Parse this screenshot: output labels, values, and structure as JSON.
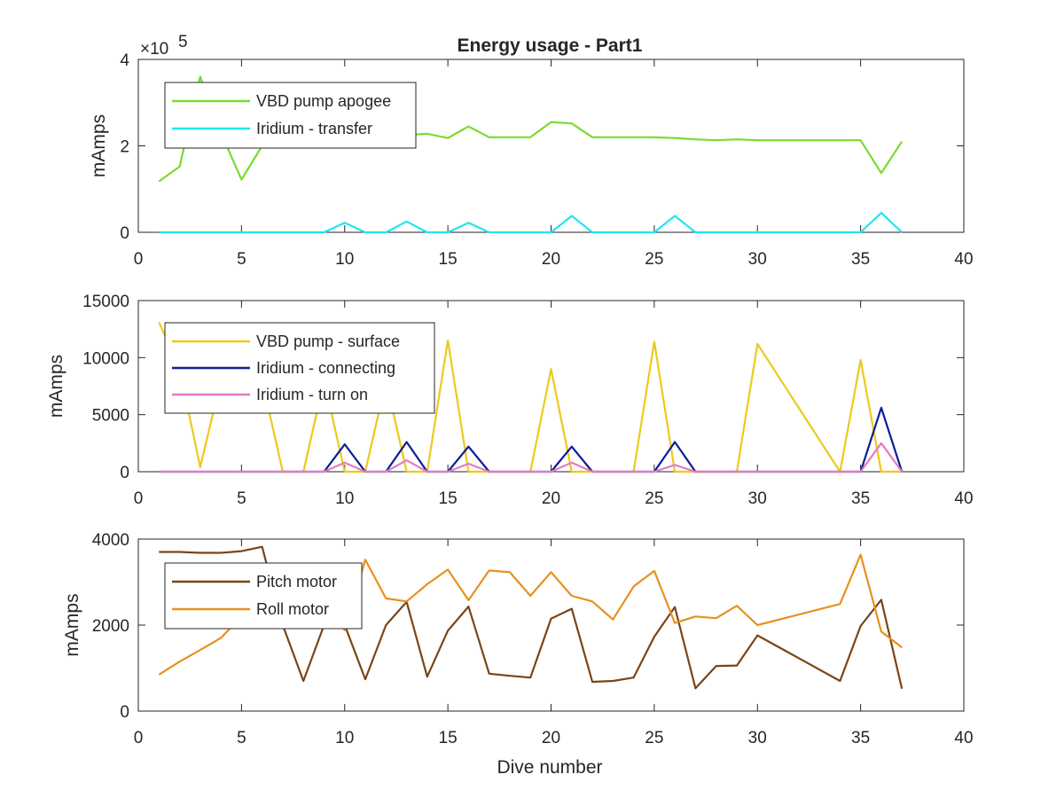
{
  "figure": {
    "title": "Energy usage - Part1",
    "xlabel": "Dive number"
  },
  "chart_data": [
    {
      "type": "line",
      "title": "Energy usage - Part1",
      "xlabel": "",
      "ylabel": "mAmps",
      "xlim": [
        0,
        40
      ],
      "ylim": [
        0,
        400000
      ],
      "xticks": [
        "0",
        "5",
        "10",
        "15",
        "20",
        "25",
        "30",
        "35",
        "40"
      ],
      "yticks": [
        "0",
        "2",
        "4"
      ],
      "ytick_values": [
        0,
        200000,
        400000
      ],
      "exponent_label": "×10",
      "exponent_power": "5",
      "grid": false,
      "legend": "top-left",
      "series": [
        {
          "name": "VBD pump apogee",
          "color": "#77DD2E",
          "x": [
            1,
            2,
            3,
            4,
            5,
            6,
            7,
            8,
            9,
            10,
            11,
            12,
            13,
            14,
            15,
            16,
            17,
            18,
            19,
            20,
            21,
            22,
            25,
            26,
            27,
            28,
            29,
            30,
            35,
            36,
            37
          ],
          "y": [
            118000,
            152000,
            360000,
            230000,
            122000,
            200000,
            215000,
            220000,
            225000,
            220000,
            215000,
            220000,
            225000,
            228000,
            218000,
            245000,
            220000,
            220000,
            220000,
            255000,
            252000,
            220000,
            220000,
            218000,
            215000,
            213000,
            215000,
            213000,
            213000,
            137000,
            210000
          ]
        },
        {
          "name": "Iridium - transfer",
          "color": "#1FE6F0",
          "x": [
            1,
            9,
            10,
            11,
            12,
            13,
            14,
            15,
            16,
            17,
            20,
            21,
            22,
            25,
            26,
            27,
            35,
            36,
            37
          ],
          "y": [
            0,
            0,
            22000,
            0,
            0,
            25000,
            0,
            0,
            22000,
            0,
            0,
            38000,
            0,
            0,
            38000,
            0,
            0,
            45000,
            0
          ]
        }
      ]
    },
    {
      "type": "line",
      "ylabel": "mAmps",
      "xlim": [
        0,
        40
      ],
      "ylim": [
        0,
        15000
      ],
      "xticks": [
        "0",
        "5",
        "10",
        "15",
        "20",
        "25",
        "30",
        "35",
        "40"
      ],
      "yticks": [
        "0",
        "5000",
        "10000",
        "15000"
      ],
      "ytick_values": [
        0,
        5000,
        10000,
        15000
      ],
      "grid": false,
      "legend": "top-left",
      "series": [
        {
          "name": "VBD pump - surface",
          "color": "#EDC91C",
          "x": [
            1,
            2,
            3,
            4,
            5,
            6,
            7,
            8,
            9,
            10,
            11,
            12,
            13,
            14,
            15,
            16,
            17,
            18,
            19,
            20,
            21,
            22,
            23,
            24,
            25,
            26,
            27,
            28,
            29,
            30,
            34,
            35,
            36,
            37
          ],
          "y": [
            13100,
            9000,
            400,
            8000,
            8000,
            8000,
            0,
            0,
            8000,
            0,
            0,
            8000,
            0,
            0,
            11500,
            0,
            0,
            0,
            0,
            9000,
            0,
            0,
            0,
            0,
            11400,
            0,
            0,
            0,
            0,
            11200,
            0,
            9800,
            0,
            0
          ]
        },
        {
          "name": "Iridium - connecting",
          "color": "#0A1E96",
          "x": [
            1,
            9,
            10,
            11,
            12,
            13,
            14,
            15,
            16,
            17,
            20,
            21,
            22,
            25,
            26,
            27,
            35,
            36,
            37
          ],
          "y": [
            0,
            0,
            2400,
            0,
            0,
            2600,
            0,
            0,
            2200,
            0,
            0,
            2200,
            0,
            0,
            2600,
            0,
            0,
            5600,
            0
          ]
        },
        {
          "name": "Iridium - turn on",
          "color": "#E47BC2",
          "x": [
            1,
            9,
            10,
            11,
            12,
            13,
            14,
            15,
            16,
            17,
            20,
            21,
            22,
            25,
            26,
            27,
            35,
            36,
            37
          ],
          "y": [
            0,
            0,
            800,
            0,
            0,
            1000,
            0,
            0,
            700,
            0,
            0,
            800,
            0,
            0,
            600,
            0,
            0,
            2500,
            0
          ]
        }
      ]
    },
    {
      "type": "line",
      "ylabel": "mAmps",
      "xlabel": "Dive number",
      "xlim": [
        0,
        40
      ],
      "ylim": [
        0,
        4000
      ],
      "xticks": [
        "0",
        "5",
        "10",
        "15",
        "20",
        "25",
        "30",
        "35",
        "40"
      ],
      "yticks": [
        "0",
        "2000",
        "4000"
      ],
      "ytick_values": [
        0,
        2000,
        4000
      ],
      "grid": false,
      "legend": "top-left",
      "series": [
        {
          "name": "Pitch motor",
          "color": "#7A4516",
          "x": [
            1,
            2,
            3,
            4,
            5,
            6,
            7,
            8,
            9,
            10,
            11,
            12,
            13,
            14,
            15,
            16,
            17,
            18,
            19,
            20,
            21,
            22,
            23,
            24,
            25,
            26,
            27,
            28,
            29,
            30,
            34,
            35,
            36,
            37
          ],
          "y": [
            3700,
            3700,
            3680,
            3680,
            3720,
            3820,
            2000,
            700,
            2000,
            2000,
            740,
            2000,
            2540,
            800,
            1870,
            2430,
            870,
            820,
            780,
            2150,
            2380,
            680,
            700,
            780,
            1730,
            2420,
            530,
            1050,
            1060,
            1760,
            700,
            1980,
            2590,
            520
          ]
        },
        {
          "name": "Roll motor",
          "color": "#E8901E",
          "x": [
            1,
            2,
            3,
            4,
            5,
            6,
            7,
            8,
            9,
            10,
            11,
            12,
            13,
            14,
            15,
            16,
            17,
            18,
            19,
            20,
            21,
            22,
            23,
            24,
            25,
            26,
            27,
            28,
            29,
            30,
            34,
            35,
            36,
            37
          ],
          "y": [
            850,
            1150,
            1420,
            1700,
            2200,
            2500,
            2800,
            3000,
            2500,
            1880,
            3520,
            2620,
            2550,
            2950,
            3290,
            2580,
            3270,
            3230,
            2680,
            3230,
            2680,
            2550,
            2130,
            2900,
            3260,
            2050,
            2200,
            2160,
            2450,
            2000,
            2490,
            3640,
            1850,
            1480
          ]
        }
      ]
    }
  ]
}
